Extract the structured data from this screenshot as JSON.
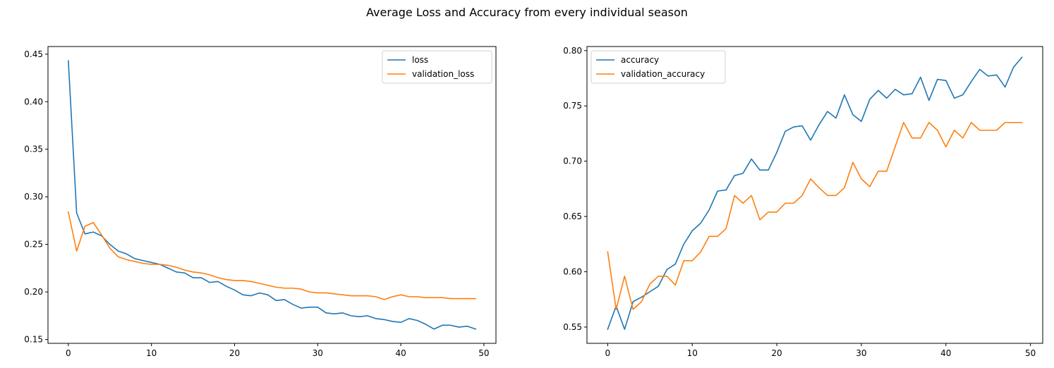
{
  "figure": {
    "title": "Average Loss and Accuracy from every individual season"
  },
  "chart_data": [
    {
      "type": "line",
      "title": "",
      "xlabel": "",
      "ylabel": "",
      "xlim": [
        -2.45,
        51.45
      ],
      "ylim": [
        0.146,
        0.458
      ],
      "xticks": [
        0,
        10,
        20,
        30,
        40,
        50
      ],
      "yticks": [
        0.15,
        0.2,
        0.25,
        0.3,
        0.35,
        0.4,
        0.45
      ],
      "ytick_labels": [
        "0.15",
        "0.20",
        "0.25",
        "0.30",
        "0.35",
        "0.40",
        "0.45"
      ],
      "grid": false,
      "legend": "top-right",
      "x": [
        0,
        1,
        2,
        3,
        4,
        5,
        6,
        7,
        8,
        9,
        10,
        11,
        12,
        13,
        14,
        15,
        16,
        17,
        18,
        19,
        20,
        21,
        22,
        23,
        24,
        25,
        26,
        27,
        28,
        29,
        30,
        31,
        32,
        33,
        34,
        35,
        36,
        37,
        38,
        39,
        40,
        41,
        42,
        43,
        44,
        45,
        46,
        47,
        48,
        49
      ],
      "series": [
        {
          "name": "loss",
          "color": "#1f77b4",
          "values": [
            0.443,
            0.283,
            0.261,
            0.263,
            0.259,
            0.25,
            0.243,
            0.24,
            0.235,
            0.233,
            0.231,
            0.229,
            0.225,
            0.221,
            0.22,
            0.215,
            0.215,
            0.21,
            0.211,
            0.206,
            0.202,
            0.197,
            0.196,
            0.199,
            0.197,
            0.191,
            0.192,
            0.187,
            0.183,
            0.184,
            0.184,
            0.178,
            0.177,
            0.178,
            0.175,
            0.174,
            0.175,
            0.172,
            0.171,
            0.169,
            0.168,
            0.172,
            0.17,
            0.166,
            0.161,
            0.165,
            0.165,
            0.163,
            0.164,
            0.161
          ]
        },
        {
          "name": "validation_loss",
          "color": "#ff7f0e",
          "values": [
            0.284,
            0.243,
            0.269,
            0.273,
            0.26,
            0.246,
            0.237,
            0.234,
            0.232,
            0.23,
            0.229,
            0.229,
            0.228,
            0.226,
            0.223,
            0.221,
            0.22,
            0.218,
            0.215,
            0.213,
            0.212,
            0.212,
            0.211,
            0.209,
            0.207,
            0.205,
            0.204,
            0.204,
            0.203,
            0.2,
            0.199,
            0.199,
            0.198,
            0.197,
            0.196,
            0.196,
            0.196,
            0.195,
            0.192,
            0.195,
            0.197,
            0.195,
            0.195,
            0.194,
            0.194,
            0.194,
            0.193,
            0.193,
            0.193,
            0.193
          ]
        }
      ]
    },
    {
      "type": "line",
      "title": "",
      "xlabel": "",
      "ylabel": "",
      "xlim": [
        -2.45,
        51.45
      ],
      "ylim": [
        0.5353,
        0.8037
      ],
      "xticks": [
        0,
        10,
        20,
        30,
        40,
        50
      ],
      "yticks": [
        0.55,
        0.6,
        0.65,
        0.7,
        0.75,
        0.8
      ],
      "ytick_labels": [
        "0.55",
        "0.60",
        "0.65",
        "0.70",
        "0.75",
        "0.80"
      ],
      "grid": false,
      "legend": "top-left",
      "x": [
        0,
        1,
        2,
        3,
        4,
        5,
        6,
        7,
        8,
        9,
        10,
        11,
        12,
        13,
        14,
        15,
        16,
        17,
        18,
        19,
        20,
        21,
        22,
        23,
        24,
        25,
        26,
        27,
        28,
        29,
        30,
        31,
        32,
        33,
        34,
        35,
        36,
        37,
        38,
        39,
        40,
        41,
        42,
        43,
        44,
        45,
        46,
        47,
        48,
        49
      ],
      "series": [
        {
          "name": "accuracy",
          "color": "#1f77b4",
          "values": [
            0.548,
            0.569,
            0.548,
            0.573,
            0.577,
            0.582,
            0.587,
            0.602,
            0.607,
            0.625,
            0.637,
            0.644,
            0.656,
            0.673,
            0.674,
            0.687,
            0.689,
            0.702,
            0.692,
            0.692,
            0.708,
            0.727,
            0.731,
            0.732,
            0.719,
            0.733,
            0.745,
            0.739,
            0.76,
            0.742,
            0.736,
            0.756,
            0.764,
            0.757,
            0.765,
            0.76,
            0.761,
            0.776,
            0.755,
            0.774,
            0.773,
            0.757,
            0.76,
            0.772,
            0.783,
            0.777,
            0.778,
            0.767,
            0.785,
            0.794
          ]
        },
        {
          "name": "validation_accuracy",
          "color": "#ff7f0e",
          "values": [
            0.618,
            0.566,
            0.596,
            0.566,
            0.573,
            0.589,
            0.596,
            0.596,
            0.588,
            0.61,
            0.61,
            0.618,
            0.632,
            0.632,
            0.639,
            0.669,
            0.662,
            0.669,
            0.647,
            0.654,
            0.654,
            0.662,
            0.662,
            0.669,
            0.684,
            0.676,
            0.669,
            0.669,
            0.676,
            0.699,
            0.684,
            0.677,
            0.691,
            0.691,
            0.713,
            0.735,
            0.721,
            0.721,
            0.735,
            0.728,
            0.713,
            0.728,
            0.721,
            0.735,
            0.728,
            0.728,
            0.728,
            0.735,
            0.735,
            0.735
          ]
        }
      ]
    }
  ]
}
